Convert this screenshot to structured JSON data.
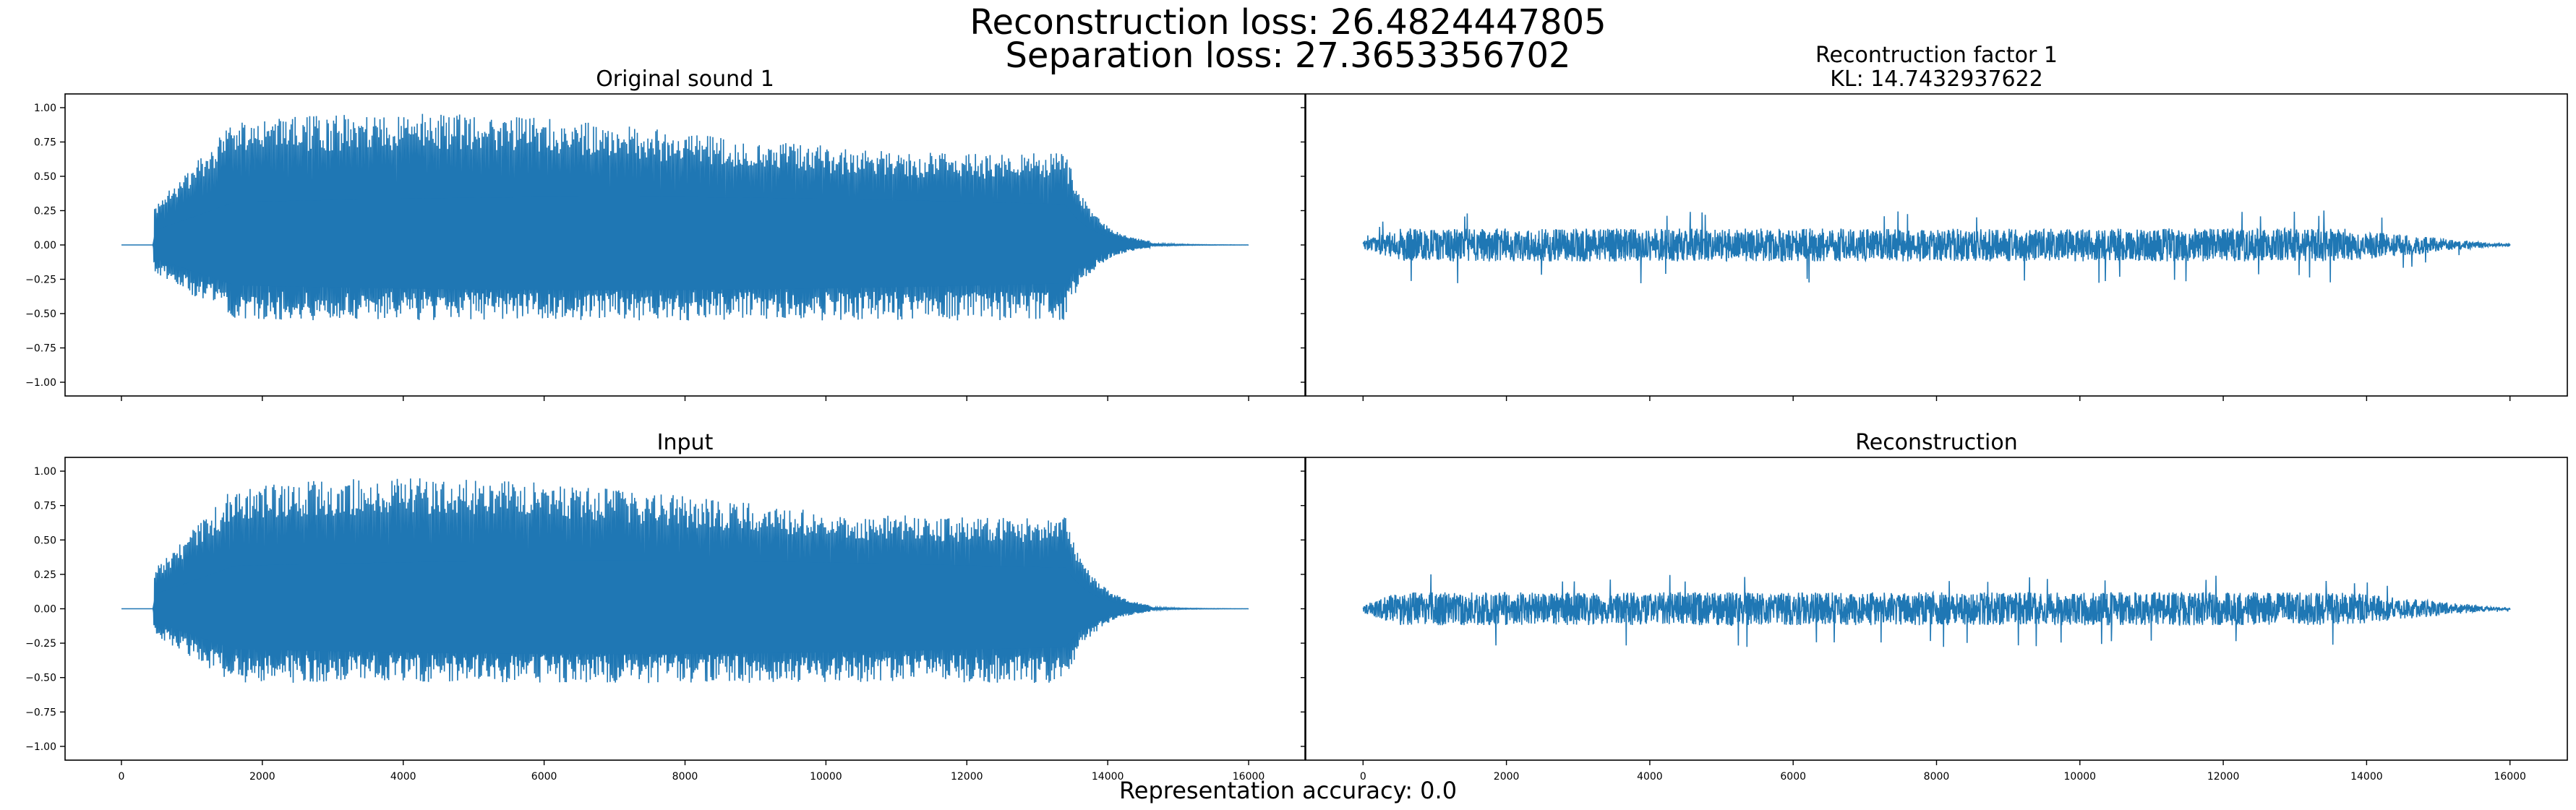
{
  "suptitle": {
    "line1": "Reconstruction loss: 26.4824447805",
    "line2": "Separation loss: 27.3653356702"
  },
  "footer": {
    "text": "Representation accuracy: 0.0"
  },
  "colors": {
    "signal": "#1f77b4",
    "axes": "#000000",
    "background": "#ffffff"
  },
  "chart_data": [
    {
      "type": "line",
      "panel": "top-left",
      "title": "Original sound 1",
      "subtitle": "",
      "xlabel": "",
      "ylabel": "",
      "xlim": [
        -800,
        16800
      ],
      "ylim": [
        -1.1,
        1.1
      ],
      "xticks": [
        0,
        2000,
        4000,
        6000,
        8000,
        10000,
        12000,
        14000,
        16000
      ],
      "xtick_labels_visible": false,
      "yticks": [
        -1.0,
        -0.75,
        -0.5,
        -0.25,
        0.0,
        0.25,
        0.5,
        0.75,
        1.0
      ],
      "ytick_labels": [
        "−1.00",
        "−0.75",
        "−0.50",
        "−0.25",
        "0.00",
        "0.25",
        "0.50",
        "0.75",
        "1.00"
      ],
      "grid": false,
      "signal": {
        "length": 16000,
        "onset": 460,
        "attack_end": 1600,
        "release_start": 13400,
        "release_end": 14600,
        "positive_peak": 0.96,
        "negative_peak": -0.55,
        "dense_positive": 0.35,
        "dense_negative": -0.33
      }
    },
    {
      "type": "line",
      "panel": "top-right",
      "title": "Recontruction factor 1",
      "subtitle": "KL: 14.7432937622",
      "xlabel": "",
      "ylabel": "",
      "xlim": [
        -800,
        16800
      ],
      "ylim": [
        -1.1,
        1.1
      ],
      "xticks": [
        0,
        2000,
        4000,
        6000,
        8000,
        10000,
        12000,
        14000,
        16000
      ],
      "xtick_labels_visible": false,
      "yticks": [
        -1.0,
        -0.75,
        -0.5,
        -0.25,
        0.0,
        0.25,
        0.5,
        0.75,
        1.0
      ],
      "ytick_labels_visible": false,
      "grid": false,
      "signal": {
        "length": 16000,
        "start_level": 0.02,
        "body_amplitude": 0.12,
        "positive_peak": 0.26,
        "negative_peak": -0.28,
        "fade_start": 13700,
        "fade_end": 16000
      }
    },
    {
      "type": "line",
      "panel": "bottom-left",
      "title": "Input",
      "subtitle": "",
      "xlabel": "",
      "ylabel": "",
      "xlim": [
        -800,
        16800
      ],
      "ylim": [
        -1.1,
        1.1
      ],
      "xticks": [
        0,
        2000,
        4000,
        6000,
        8000,
        10000,
        12000,
        14000,
        16000
      ],
      "xtick_labels": [
        "0",
        "2000",
        "4000",
        "6000",
        "8000",
        "10000",
        "12000",
        "14000",
        "16000"
      ],
      "yticks": [
        -1.0,
        -0.75,
        -0.5,
        -0.25,
        0.0,
        0.25,
        0.5,
        0.75,
        1.0
      ],
      "ytick_labels": [
        "−1.00",
        "−0.75",
        "−0.50",
        "−0.25",
        "0.00",
        "0.25",
        "0.50",
        "0.75",
        "1.00"
      ],
      "grid": false,
      "signal": {
        "length": 16000,
        "onset": 460,
        "attack_end": 1600,
        "release_start": 13400,
        "release_end": 14600,
        "positive_peak": 0.95,
        "negative_peak": -0.54,
        "dense_positive": 0.35,
        "dense_negative": -0.33
      }
    },
    {
      "type": "line",
      "panel": "bottom-right",
      "title": "Reconstruction",
      "subtitle": "",
      "xlabel": "",
      "ylabel": "",
      "xlim": [
        -800,
        16800
      ],
      "ylim": [
        -1.1,
        1.1
      ],
      "xticks": [
        0,
        2000,
        4000,
        6000,
        8000,
        10000,
        12000,
        14000,
        16000
      ],
      "xtick_labels": [
        "0",
        "2000",
        "4000",
        "6000",
        "8000",
        "10000",
        "12000",
        "14000",
        "16000"
      ],
      "yticks": [
        -1.0,
        -0.75,
        -0.5,
        -0.25,
        0.0,
        0.25,
        0.5,
        0.75,
        1.0
      ],
      "ytick_labels_visible": false,
      "grid": false,
      "signal": {
        "length": 16000,
        "start_level": 0.02,
        "body_amplitude": 0.12,
        "positive_peak": 0.26,
        "negative_peak": -0.28,
        "fade_start": 13700,
        "fade_end": 16000
      }
    }
  ]
}
